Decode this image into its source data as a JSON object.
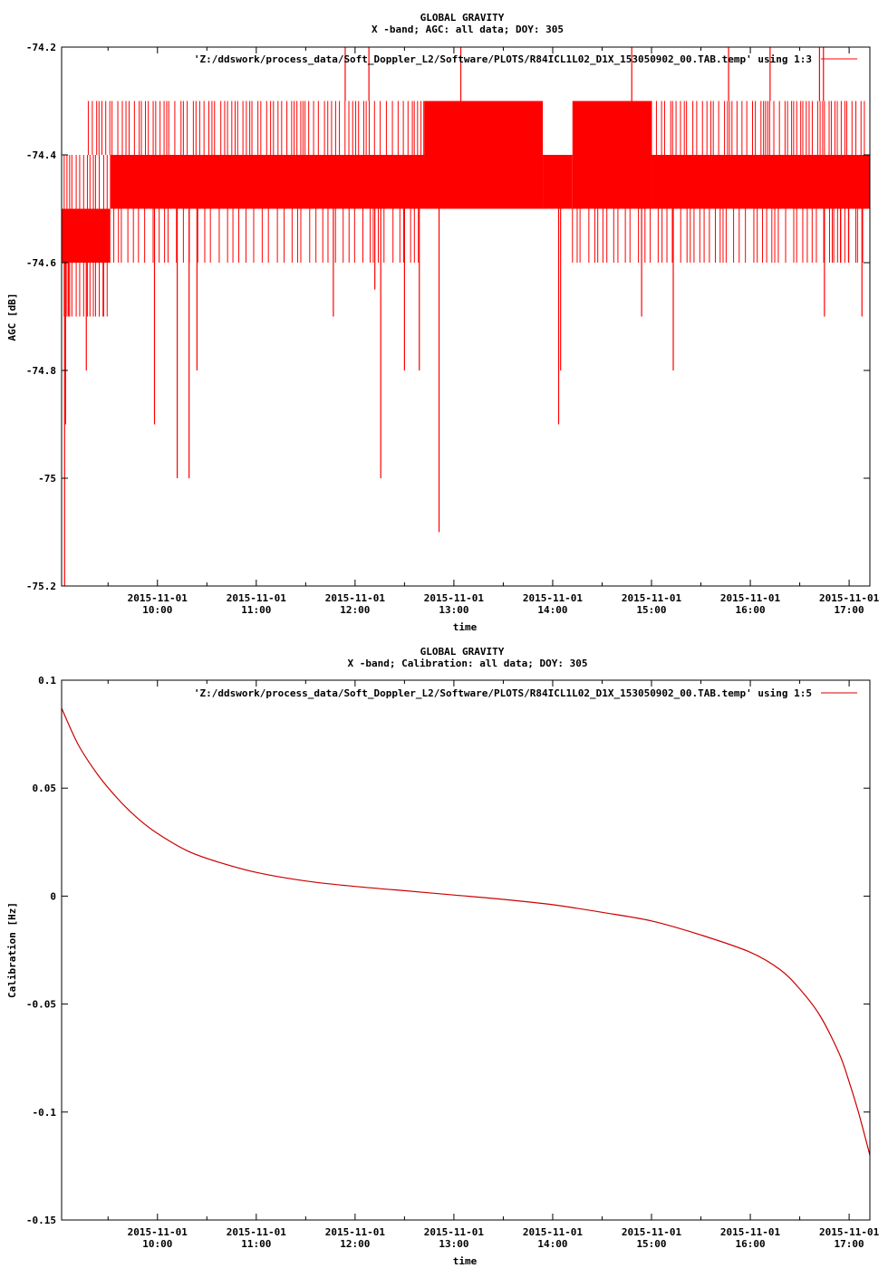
{
  "chart_data": [
    {
      "type": "line",
      "title": "GLOBAL GRAVITY",
      "subtitle": "X -band; AGC: all data; DOY: 305",
      "xlabel": "time",
      "ylabel": "AGC [dB]",
      "legend": "'Z:/ddswork/process_data/Soft_Doppler_L2/Software/PLOTS/R84ICL1L02_D1X_153050902_00.TAB.temp' using 1:3",
      "legend_position": "top-right",
      "color": "#ff0000",
      "xlim": [
        9.03,
        17.21
      ],
      "ylim": [
        -75.2,
        -74.2
      ],
      "x_ticks": [
        {
          "x": 10,
          "date": "2015-11-01",
          "time": "10:00"
        },
        {
          "x": 11,
          "date": "2015-11-01",
          "time": "11:00"
        },
        {
          "x": 12,
          "date": "2015-11-01",
          "time": "12:00"
        },
        {
          "x": 13,
          "date": "2015-11-01",
          "time": "13:00"
        },
        {
          "x": 14,
          "date": "2015-11-01",
          "time": "14:00"
        },
        {
          "x": 15,
          "date": "2015-11-01",
          "time": "15:00"
        },
        {
          "x": 16,
          "date": "2015-11-01",
          "time": "16:00"
        },
        {
          "x": 17,
          "date": "2015-11-01",
          "time": "17:00"
        }
      ],
      "y_ticks": [
        {
          "v": -74.2,
          "label": "-74.2"
        },
        {
          "v": -74.4,
          "label": "-74.4"
        },
        {
          "v": -74.6,
          "label": "-74.6"
        },
        {
          "v": -74.8,
          "label": "-74.8"
        },
        {
          "v": -75.0,
          "label": "-75"
        },
        {
          "v": -75.2,
          "label": "-75.2"
        }
      ],
      "bands": [
        {
          "x0": 9.03,
          "x1": 9.52,
          "lo": -74.6,
          "hi": -74.5
        },
        {
          "x0": 9.52,
          "x1": 13.9,
          "lo": -74.5,
          "hi": -74.4
        },
        {
          "x0": 12.7,
          "x1": 13.9,
          "lo": -74.4,
          "hi": -74.3
        },
        {
          "x0": 13.9,
          "x1": 14.2,
          "lo": -74.5,
          "hi": -74.4
        },
        {
          "x0": 14.2,
          "x1": 15.0,
          "lo": -74.5,
          "hi": -74.3
        },
        {
          "x0": 15.0,
          "x1": 17.21,
          "lo": -74.5,
          "hi": -74.4
        }
      ],
      "spikes": [
        {
          "x": 9.06,
          "y": -75.2
        },
        {
          "x": 9.07,
          "y": -74.9
        },
        {
          "x": 9.1,
          "y": -74.7
        },
        {
          "x": 9.28,
          "y": -74.8
        },
        {
          "x": 9.45,
          "y": -74.7
        },
        {
          "x": 9.97,
          "y": -74.9
        },
        {
          "x": 10.2,
          "y": -75.0
        },
        {
          "x": 10.32,
          "y": -75.0
        },
        {
          "x": 10.4,
          "y": -74.8
        },
        {
          "x": 11.78,
          "y": -74.7
        },
        {
          "x": 12.2,
          "y": -74.65
        },
        {
          "x": 12.26,
          "y": -75.0
        },
        {
          "x": 12.5,
          "y": -74.8
        },
        {
          "x": 12.65,
          "y": -74.8
        },
        {
          "x": 12.85,
          "y": -75.1
        },
        {
          "x": 14.06,
          "y": -74.9
        },
        {
          "x": 14.08,
          "y": -74.8
        },
        {
          "x": 14.9,
          "y": -74.7
        },
        {
          "x": 15.22,
          "y": -74.8
        },
        {
          "x": 16.75,
          "y": -74.7
        },
        {
          "x": 17.13,
          "y": -74.7
        },
        {
          "x": 11.9,
          "y": -74.2
        },
        {
          "x": 12.14,
          "y": -74.2
        },
        {
          "x": 13.07,
          "y": -74.2
        },
        {
          "x": 14.8,
          "y": -74.2
        },
        {
          "x": 15.78,
          "y": -74.2
        },
        {
          "x": 16.2,
          "y": -74.2
        },
        {
          "x": 16.74,
          "y": -74.2
        },
        {
          "x": 16.7,
          "y": -74.2
        }
      ],
      "noise_tops": [
        {
          "x0": 9.3,
          "x1": 12.7,
          "y": -74.3
        },
        {
          "x0": 15.0,
          "x1": 17.21,
          "y": -74.3
        }
      ],
      "noise_bottoms": [
        {
          "x0": 9.1,
          "x1": 12.7,
          "y": -74.6
        },
        {
          "x0": 14.2,
          "x1": 17.21,
          "y": -74.6
        },
        {
          "x0": 16.75,
          "x1": 17.21,
          "y": -74.6
        }
      ]
    },
    {
      "type": "line",
      "title": "GLOBAL GRAVITY",
      "subtitle": "X -band; Calibration: all data; DOY: 305",
      "xlabel": "time",
      "ylabel": "Calibration [Hz]",
      "legend": "'Z:/ddswork/process_data/Soft_Doppler_L2/Software/PLOTS/R84ICL1L02_D1X_153050902_00.TAB.temp' using 1:5",
      "legend_position": "top-right",
      "color": "#cc0000",
      "xlim": [
        9.03,
        17.21
      ],
      "ylim": [
        -0.15,
        0.1
      ],
      "x_ticks": [
        {
          "x": 10,
          "date": "2015-11-01",
          "time": "10:00"
        },
        {
          "x": 11,
          "date": "2015-11-01",
          "time": "11:00"
        },
        {
          "x": 12,
          "date": "2015-11-01",
          "time": "12:00"
        },
        {
          "x": 13,
          "date": "2015-11-01",
          "time": "13:00"
        },
        {
          "x": 14,
          "date": "2015-11-01",
          "time": "14:00"
        },
        {
          "x": 15,
          "date": "2015-11-01",
          "time": "15:00"
        },
        {
          "x": 16,
          "date": "2015-11-01",
          "time": "16:00"
        },
        {
          "x": 17,
          "date": "2015-11-01",
          "time": "17:00"
        }
      ],
      "y_ticks": [
        {
          "v": 0.1,
          "label": "0.1"
        },
        {
          "v": 0.05,
          "label": "0.05"
        },
        {
          "v": 0.0,
          "label": "0"
        },
        {
          "v": -0.05,
          "label": "-0.05"
        },
        {
          "v": -0.1,
          "label": "-0.1"
        },
        {
          "v": -0.15,
          "label": "-0.15"
        }
      ],
      "x": [
        9.03,
        9.2,
        9.4,
        9.6,
        9.8,
        10.0,
        10.3,
        10.6,
        11.0,
        11.5,
        12.0,
        12.5,
        13.0,
        13.5,
        14.0,
        14.5,
        15.0,
        15.5,
        16.0,
        16.3,
        16.5,
        16.7,
        16.9,
        17.0,
        17.1,
        17.21
      ],
      "y": [
        0.087,
        0.07,
        0.056,
        0.045,
        0.036,
        0.029,
        0.021,
        0.016,
        0.011,
        0.007,
        0.0045,
        0.0025,
        0.0005,
        -0.0015,
        -0.004,
        -0.0075,
        -0.0115,
        -0.018,
        -0.026,
        -0.034,
        -0.043,
        -0.055,
        -0.073,
        -0.086,
        -0.101,
        -0.12
      ]
    }
  ]
}
